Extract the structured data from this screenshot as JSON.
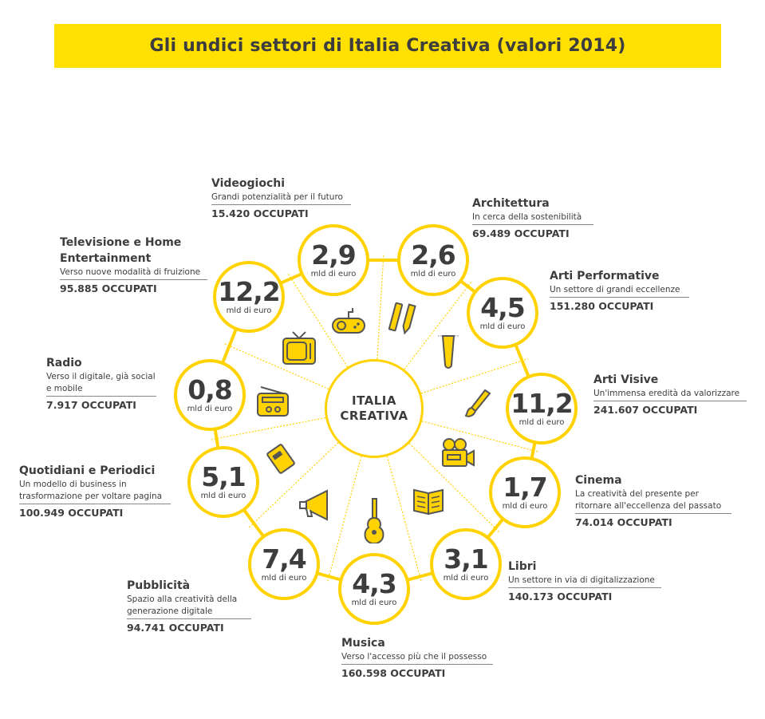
{
  "title": "Gli undici settori di Italia Creativa (valori 2014)",
  "center": {
    "line1": "ITALIA",
    "line2": "CREATIVA"
  },
  "colors": {
    "accent": "#ffd200",
    "title_bg": "#ffe000",
    "text": "#3d3d3f"
  },
  "sectors": [
    {
      "name": "Televisione e Home Entertainment",
      "subtitle": "Verso nuove modalità di fruizione",
      "employed": "95.885 OCCUPATI",
      "value": "12,2",
      "unit": "mld di euro",
      "icon": "tv-icon"
    },
    {
      "name": "Videogiochi",
      "subtitle": "Grandi potenzialità per il futuro",
      "employed": "15.420 OCCUPATI",
      "value": "2,9",
      "unit": "mld di euro",
      "icon": "gamepad-icon"
    },
    {
      "name": "Architettura",
      "subtitle": "In cerca della sostenibilità",
      "employed": "69.489 OCCUPATI",
      "value": "2,6",
      "unit": "mld di euro",
      "icon": "ruler-pencil-icon"
    },
    {
      "name": "Arti Performative",
      "subtitle": "Un settore di grandi eccellenze",
      "employed": "151.280 OCCUPATI",
      "value": "4,5",
      "unit": "mld di euro",
      "icon": "ballet-shoe-icon"
    },
    {
      "name": "Arti Visive",
      "subtitle": "Un'immensa eredità da valorizzare",
      "employed": "241.607 OCCUPATI",
      "value": "11,2",
      "unit": "mld di euro",
      "icon": "paintbrush-icon"
    },
    {
      "name": "Cinema",
      "subtitle": "La creatività del presente per ritornare all'eccellenza del passato",
      "employed": "74.014 OCCUPATI",
      "value": "1,7",
      "unit": "mld di euro",
      "icon": "movie-camera-icon"
    },
    {
      "name": "Libri",
      "subtitle": "Un settore in via di digitalizzazione",
      "employed": "140.173 OCCUPATI",
      "value": "3,1",
      "unit": "mld di euro",
      "icon": "book-icon"
    },
    {
      "name": "Musica",
      "subtitle": "Verso l'accesso più che il possesso",
      "employed": "160.598 OCCUPATI",
      "value": "4,3",
      "unit": "mld di euro",
      "icon": "guitar-icon"
    },
    {
      "name": "Pubblicità",
      "subtitle": "Spazio alla creatività della generazione digitale",
      "employed": "94.741 OCCUPATI",
      "value": "7,4",
      "unit": "mld di euro",
      "icon": "megaphone-icon"
    },
    {
      "name": "Quotidiani e Periodici",
      "subtitle": "Un modello di business in trasformazione per voltare pagina",
      "employed": "100.949 OCCUPATI",
      "value": "5,1",
      "unit": "mld di euro",
      "icon": "newspaper-icon"
    },
    {
      "name": "Radio",
      "subtitle": "Verso il digitale, già social e mobile",
      "employed": "7.917 OCCUPATI",
      "value": "0,8",
      "unit": "mld di euro",
      "icon": "radio-icon"
    }
  ]
}
